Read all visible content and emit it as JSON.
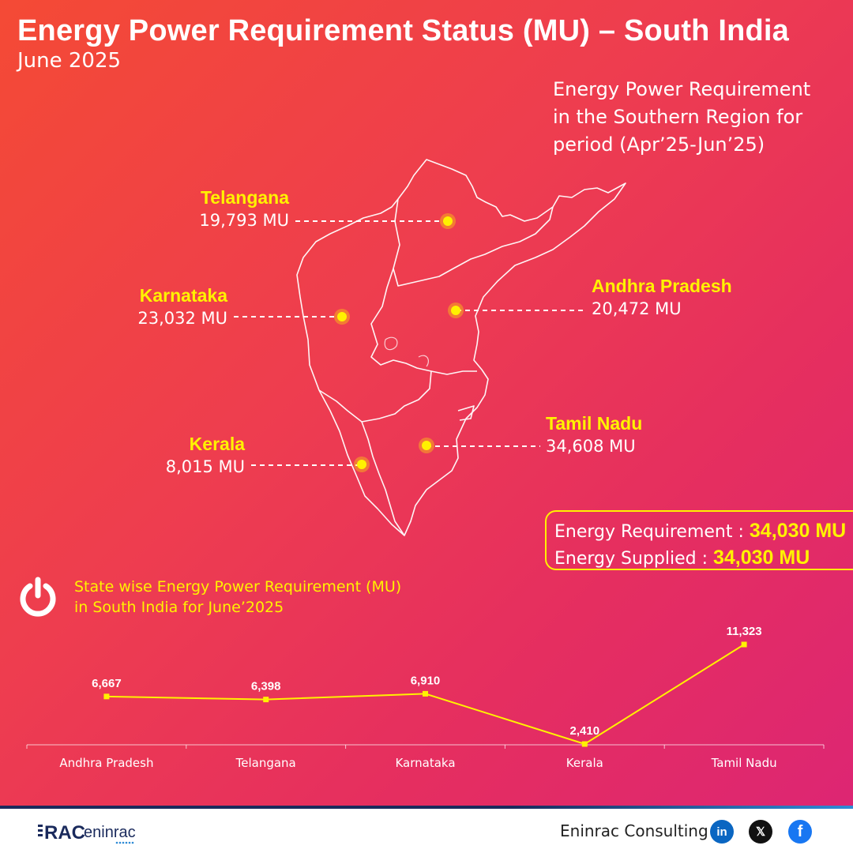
{
  "header": {
    "title": "Energy Power Requirement Status (MU) – South India",
    "subtitle": "June 2025"
  },
  "period_note": {
    "lines": [
      "Energy Power Requirement",
      "in the Southern Region for",
      "period (Apr’25-Jun’25)"
    ]
  },
  "map_states": [
    {
      "name": "Telangana",
      "value": "19,793 MU"
    },
    {
      "name": "Karnataka",
      "value": "23,032 MU"
    },
    {
      "name": "Andhra Pradesh",
      "value": "20,472 MU"
    },
    {
      "name": "Kerala",
      "value": "8,015 MU"
    },
    {
      "name": "Tamil Nadu",
      "value": "34,608 MU"
    }
  ],
  "summary": {
    "requirement_label": "Energy Requirement : ",
    "requirement_value": "34,030 MU",
    "supplied_label": "Energy Supplied : ",
    "supplied_value": "34,030 MU"
  },
  "chart_section": {
    "title_lines": [
      "State wise Energy Power Requirement (MU)",
      "in South India for June’2025"
    ]
  },
  "chart_data": {
    "type": "line",
    "title": "State wise Energy Power Requirement (MU) in South India for June’2025",
    "xlabel": "",
    "ylabel": "",
    "categories": [
      "Andhra Pradesh",
      "Telangana",
      "Karnataka",
      "Kerala",
      "Tamil Nadu"
    ],
    "values": [
      6667,
      6398,
      6910,
      2410,
      11323
    ],
    "value_labels": [
      "6,667",
      "6,398",
      "6,910",
      "2,410",
      "11,323"
    ],
    "ylim": [
      2410,
      11323
    ],
    "grid": false,
    "legend": "none"
  },
  "footer": {
    "logo_text_a": "RAC",
    "logo_text_b": "eninrac",
    "company": "Eninrac Consulting",
    "social": [
      {
        "name": "linkedin-icon",
        "glyph": "in"
      },
      {
        "name": "x-icon",
        "glyph": "𝕏"
      },
      {
        "name": "facebook-icon",
        "glyph": "f"
      }
    ]
  },
  "colors": {
    "accent_yellow": "#fff200",
    "bg_start": "#f44a35",
    "bg_end": "#dc2575",
    "footer_navy": "#1a2a5c"
  }
}
